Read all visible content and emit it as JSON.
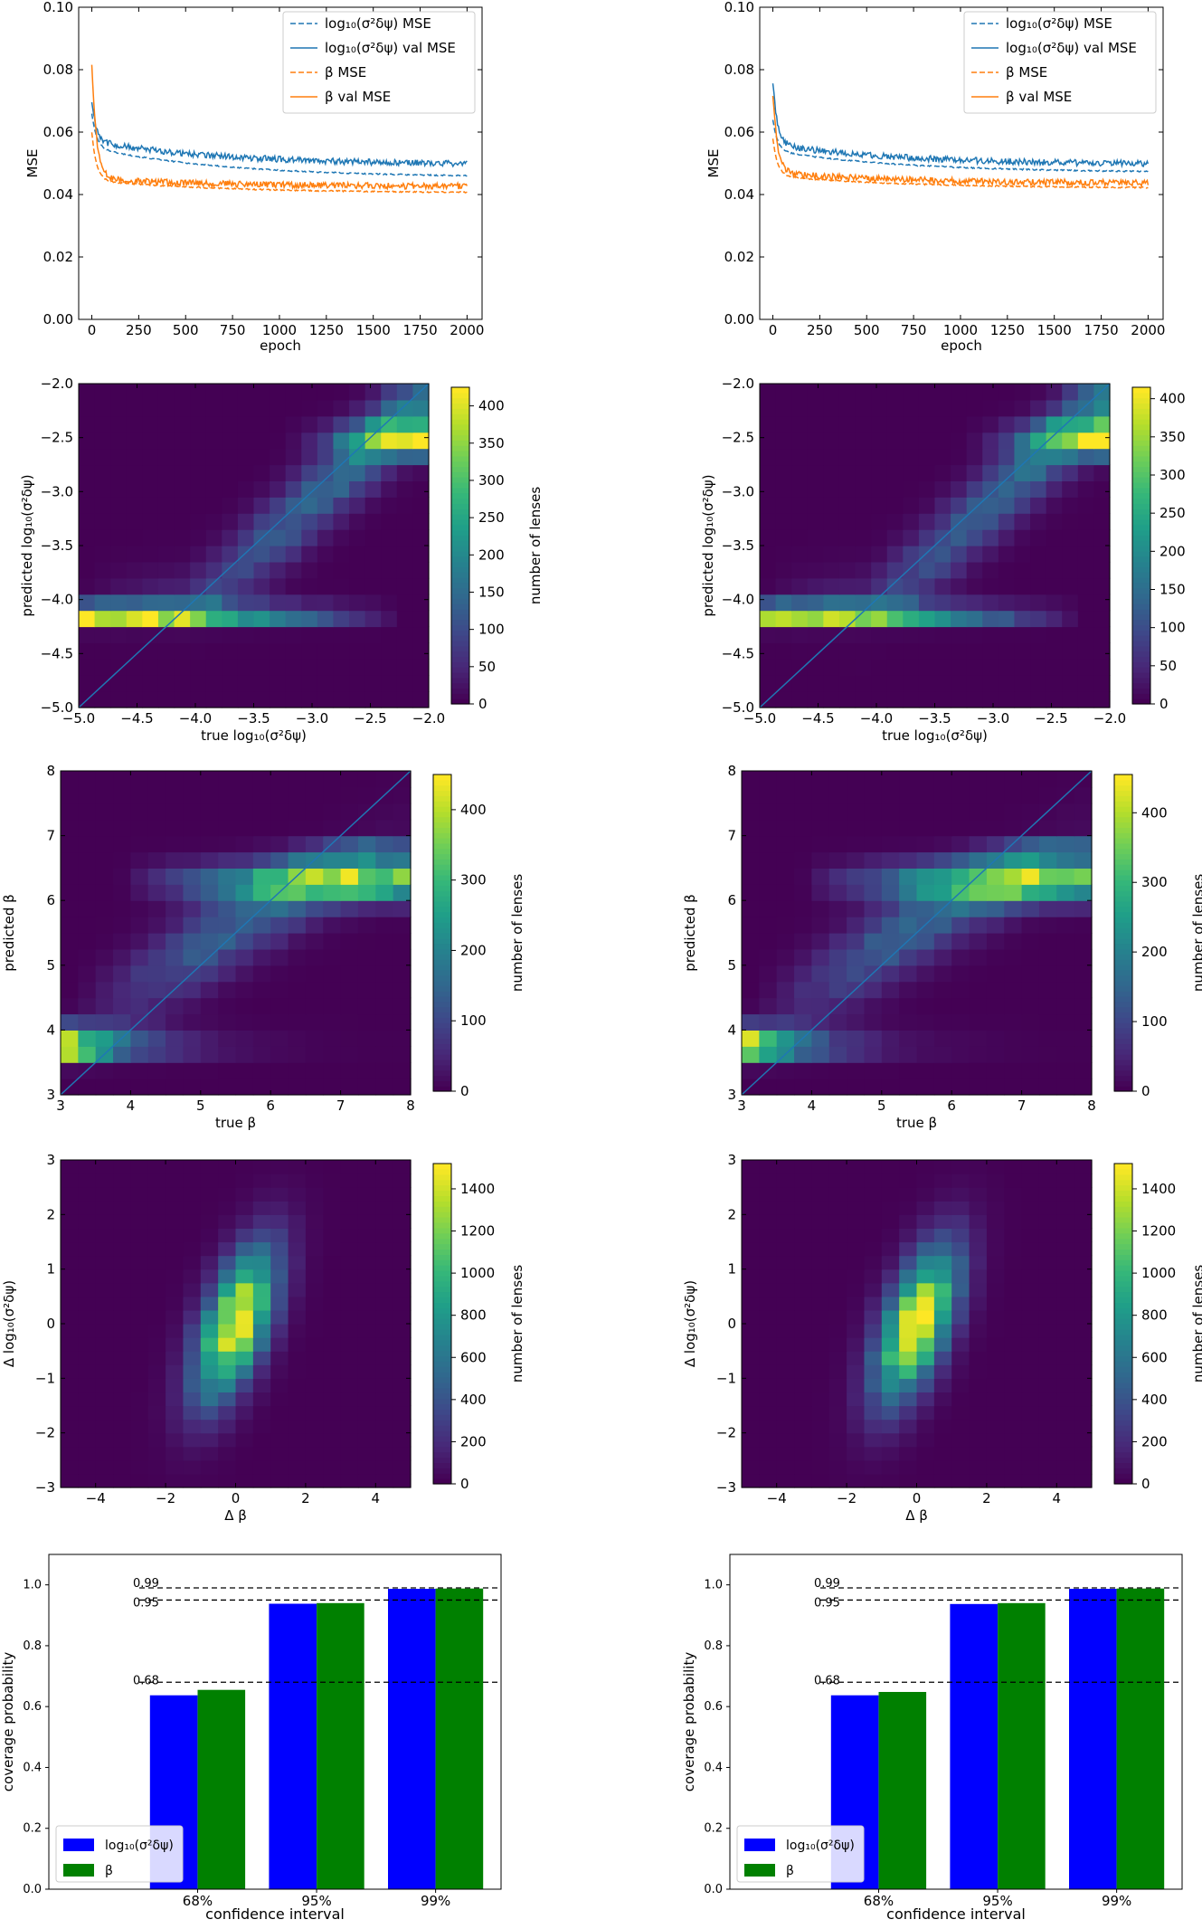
{
  "colors": {
    "mse_blue": "#1f77b4",
    "mse_orange": "#ff7f0e",
    "bar_blue": "#0000ff",
    "bar_green": "#008000",
    "viridis": [
      "#440154",
      "#482878",
      "#3e4989",
      "#31688e",
      "#26828e",
      "#1f9e89",
      "#35b779",
      "#6ece58",
      "#b5de2b",
      "#fde725"
    ]
  },
  "columns": [
    {
      "loss": {
        "type": "line",
        "xlabel": "epoch",
        "ylabel": "MSE",
        "xlim": [
          -70,
          2080
        ],
        "ylim": [
          0.0,
          0.1
        ],
        "xticks": [
          "0",
          "250",
          "500",
          "750",
          "1000",
          "1250",
          "1500",
          "1750",
          "2000"
        ],
        "yticks": [
          "0.00",
          "0.02",
          "0.04",
          "0.06",
          "0.08",
          "0.10"
        ],
        "legend_loc": "top-right",
        "series": [
          {
            "name": "log₁₀(σ²δψ) MSE",
            "color": "blue",
            "dashed": true,
            "start": 0.066,
            "knee": 0.055,
            "end": 0.0455,
            "noise": 0.0004
          },
          {
            "name": "log₁₀(σ²δψ) val MSE",
            "color": "blue",
            "dashed": false,
            "start": 0.07,
            "knee": 0.057,
            "end": 0.0495,
            "noise": 0.001
          },
          {
            "name": "β MSE",
            "color": "orange",
            "dashed": true,
            "start": 0.06,
            "knee": 0.0445,
            "end": 0.0405,
            "noise": 0.0004
          },
          {
            "name": "β val MSE",
            "color": "orange",
            "dashed": false,
            "start": 0.082,
            "knee": 0.045,
            "end": 0.0425,
            "noise": 0.001
          }
        ]
      },
      "hist_sigma": {
        "type": "heatmap",
        "xlabel": "true log₁₀(σ²δψ)",
        "ylabel": "predicted log₁₀(σ²δψ)",
        "xlim": [
          -5.0,
          -2.0
        ],
        "ylim": [
          -5.0,
          -2.0
        ],
        "xticks": [
          "−5.0",
          "−4.5",
          "−4.0",
          "−3.5",
          "−3.0",
          "−2.5",
          "−2.0"
        ],
        "yticks": [
          "−5.0",
          "−4.5",
          "−4.0",
          "−3.5",
          "−3.0",
          "−2.5",
          "−2.0"
        ],
        "colorbar_label": "number of lenses",
        "cbar_max": 425,
        "cbar_ticks": [
          "0",
          "50",
          "100",
          "150",
          "200",
          "250",
          "300",
          "350",
          "400"
        ],
        "cbar_tick_values": [
          0,
          50,
          100,
          150,
          200,
          250,
          300,
          350,
          400
        ]
      },
      "hist_beta": {
        "type": "heatmap",
        "xlabel": "true β",
        "ylabel": "predicted β",
        "xlim": [
          3,
          8
        ],
        "ylim": [
          3,
          8
        ],
        "xticks": [
          "3",
          "4",
          "5",
          "6",
          "7",
          "8"
        ],
        "yticks": [
          "3",
          "4",
          "5",
          "6",
          "7",
          "8"
        ],
        "colorbar_label": "number of lenses",
        "cbar_max": 450,
        "cbar_ticks": [
          "0",
          "100",
          "200",
          "300",
          "400"
        ],
        "cbar_tick_values": [
          0,
          100,
          200,
          300,
          400
        ]
      },
      "hist_delta": {
        "type": "heatmap",
        "xlabel": "Δ β",
        "ylabel": "Δ log₁₀(σ²δψ)",
        "xlim": [
          -5,
          5
        ],
        "ylim": [
          -3,
          3
        ],
        "xticks": [
          "−4",
          "−2",
          "0",
          "2",
          "4"
        ],
        "xtick_values": [
          -4,
          -2,
          0,
          2,
          4
        ],
        "yticks": [
          "−3",
          "−2",
          "−1",
          "0",
          "1",
          "2",
          "3"
        ],
        "colorbar_label": "number of lenses",
        "cbar_max": 1520,
        "cbar_ticks": [
          "0",
          "200",
          "400",
          "600",
          "800",
          "1000",
          "1200",
          "1400"
        ],
        "cbar_tick_values": [
          0,
          200,
          400,
          600,
          800,
          1000,
          1200,
          1400
        ]
      },
      "coverage": {
        "type": "bar",
        "xlabel": "confidence interval",
        "ylabel": "coverage probability",
        "categories": [
          "68%",
          "95%",
          "99%"
        ],
        "ylim": [
          0.0,
          1.1
        ],
        "yticks": [
          "0.0",
          "0.2",
          "0.4",
          "0.6",
          "0.8",
          "1.0"
        ],
        "reference_lines": [
          {
            "label": "0.68",
            "value": 0.68
          },
          {
            "label": "0.95",
            "value": 0.95
          },
          {
            "label": "0.99",
            "value": 0.99
          }
        ],
        "legend_loc": "lower-left",
        "series": [
          {
            "name": "log₁₀(σ²δψ)",
            "color": "bar_blue",
            "values": [
              0.637,
              0.938,
              0.987
            ]
          },
          {
            "name": "β",
            "color": "bar_green",
            "values": [
              0.655,
              0.94,
              0.988
            ]
          }
        ]
      }
    },
    {
      "loss": {
        "type": "line",
        "xlabel": "epoch",
        "ylabel": "MSE",
        "xlim": [
          -70,
          2080
        ],
        "ylim": [
          0.0,
          0.1
        ],
        "xticks": [
          "0",
          "250",
          "500",
          "750",
          "1000",
          "1250",
          "1500",
          "1750",
          "2000"
        ],
        "yticks": [
          "0.00",
          "0.02",
          "0.04",
          "0.06",
          "0.08",
          "0.10"
        ],
        "legend_loc": "top-right",
        "series": [
          {
            "name": "log₁₀(σ²δψ) MSE",
            "color": "blue",
            "dashed": true,
            "start": 0.064,
            "knee": 0.054,
            "end": 0.047,
            "noise": 0.0004
          },
          {
            "name": "log₁₀(σ²δψ) val MSE",
            "color": "blue",
            "dashed": false,
            "start": 0.076,
            "knee": 0.056,
            "end": 0.0495,
            "noise": 0.001
          },
          {
            "name": "β MSE",
            "color": "orange",
            "dashed": true,
            "start": 0.058,
            "knee": 0.046,
            "end": 0.042,
            "noise": 0.0004
          },
          {
            "name": "β val MSE",
            "color": "orange",
            "dashed": false,
            "start": 0.072,
            "knee": 0.047,
            "end": 0.0435,
            "noise": 0.001
          }
        ]
      },
      "hist_sigma": {
        "type": "heatmap",
        "xlabel": "true log₁₀(σ²δψ)",
        "ylabel": "predicted log₁₀(σ²δψ)",
        "xlim": [
          -5.0,
          -2.0
        ],
        "ylim": [
          -5.0,
          -2.0
        ],
        "xticks": [
          "−5.0",
          "−4.5",
          "−4.0",
          "−3.5",
          "−3.0",
          "−2.5",
          "−2.0"
        ],
        "yticks": [
          "−5.0",
          "−4.5",
          "−4.0",
          "−3.5",
          "−3.0",
          "−2.5",
          "−2.0"
        ],
        "colorbar_label": "number of lenses",
        "cbar_max": 415,
        "cbar_ticks": [
          "0",
          "50",
          "100",
          "150",
          "200",
          "250",
          "300",
          "350",
          "400"
        ],
        "cbar_tick_values": [
          0,
          50,
          100,
          150,
          200,
          250,
          300,
          350,
          400
        ]
      },
      "hist_beta": {
        "type": "heatmap",
        "xlabel": "true β",
        "ylabel": "predicted β",
        "xlim": [
          3,
          8
        ],
        "ylim": [
          3,
          8
        ],
        "xticks": [
          "3",
          "4",
          "5",
          "6",
          "7",
          "8"
        ],
        "yticks": [
          "3",
          "4",
          "5",
          "6",
          "7",
          "8"
        ],
        "colorbar_label": "number of lenses",
        "cbar_max": 455,
        "cbar_ticks": [
          "0",
          "100",
          "200",
          "300",
          "400"
        ],
        "cbar_tick_values": [
          0,
          100,
          200,
          300,
          400
        ]
      },
      "hist_delta": {
        "type": "heatmap",
        "xlabel": "Δ β",
        "ylabel": "Δ log₁₀(σ²δψ)",
        "xlim": [
          -5,
          5
        ],
        "ylim": [
          -3,
          3
        ],
        "xticks": [
          "−4",
          "−2",
          "0",
          "2",
          "4"
        ],
        "xtick_values": [
          -4,
          -2,
          0,
          2,
          4
        ],
        "yticks": [
          "−3",
          "−2",
          "−1",
          "0",
          "1",
          "2",
          "3"
        ],
        "colorbar_label": "number of lenses",
        "cbar_max": 1520,
        "cbar_ticks": [
          "0",
          "200",
          "400",
          "600",
          "800",
          "1000",
          "1200",
          "1400"
        ],
        "cbar_tick_values": [
          0,
          200,
          400,
          600,
          800,
          1000,
          1200,
          1400
        ]
      },
      "coverage": {
        "type": "bar",
        "xlabel": "confidence interval",
        "ylabel": "coverage probability",
        "categories": [
          "68%",
          "95%",
          "99%"
        ],
        "ylim": [
          0.0,
          1.1
        ],
        "yticks": [
          "0.0",
          "0.2",
          "0.4",
          "0.6",
          "0.8",
          "1.0"
        ],
        "reference_lines": [
          {
            "label": "0.68",
            "value": 0.68
          },
          {
            "label": "0.95",
            "value": 0.95
          },
          {
            "label": "0.99",
            "value": 0.99
          }
        ],
        "legend_loc": "lower-left",
        "series": [
          {
            "name": "log₁₀(σ²δψ)",
            "color": "bar_blue",
            "values": [
              0.637,
              0.937,
              0.987
            ]
          },
          {
            "name": "β",
            "color": "bar_green",
            "values": [
              0.648,
              0.94,
              0.988
            ]
          }
        ]
      }
    }
  ]
}
